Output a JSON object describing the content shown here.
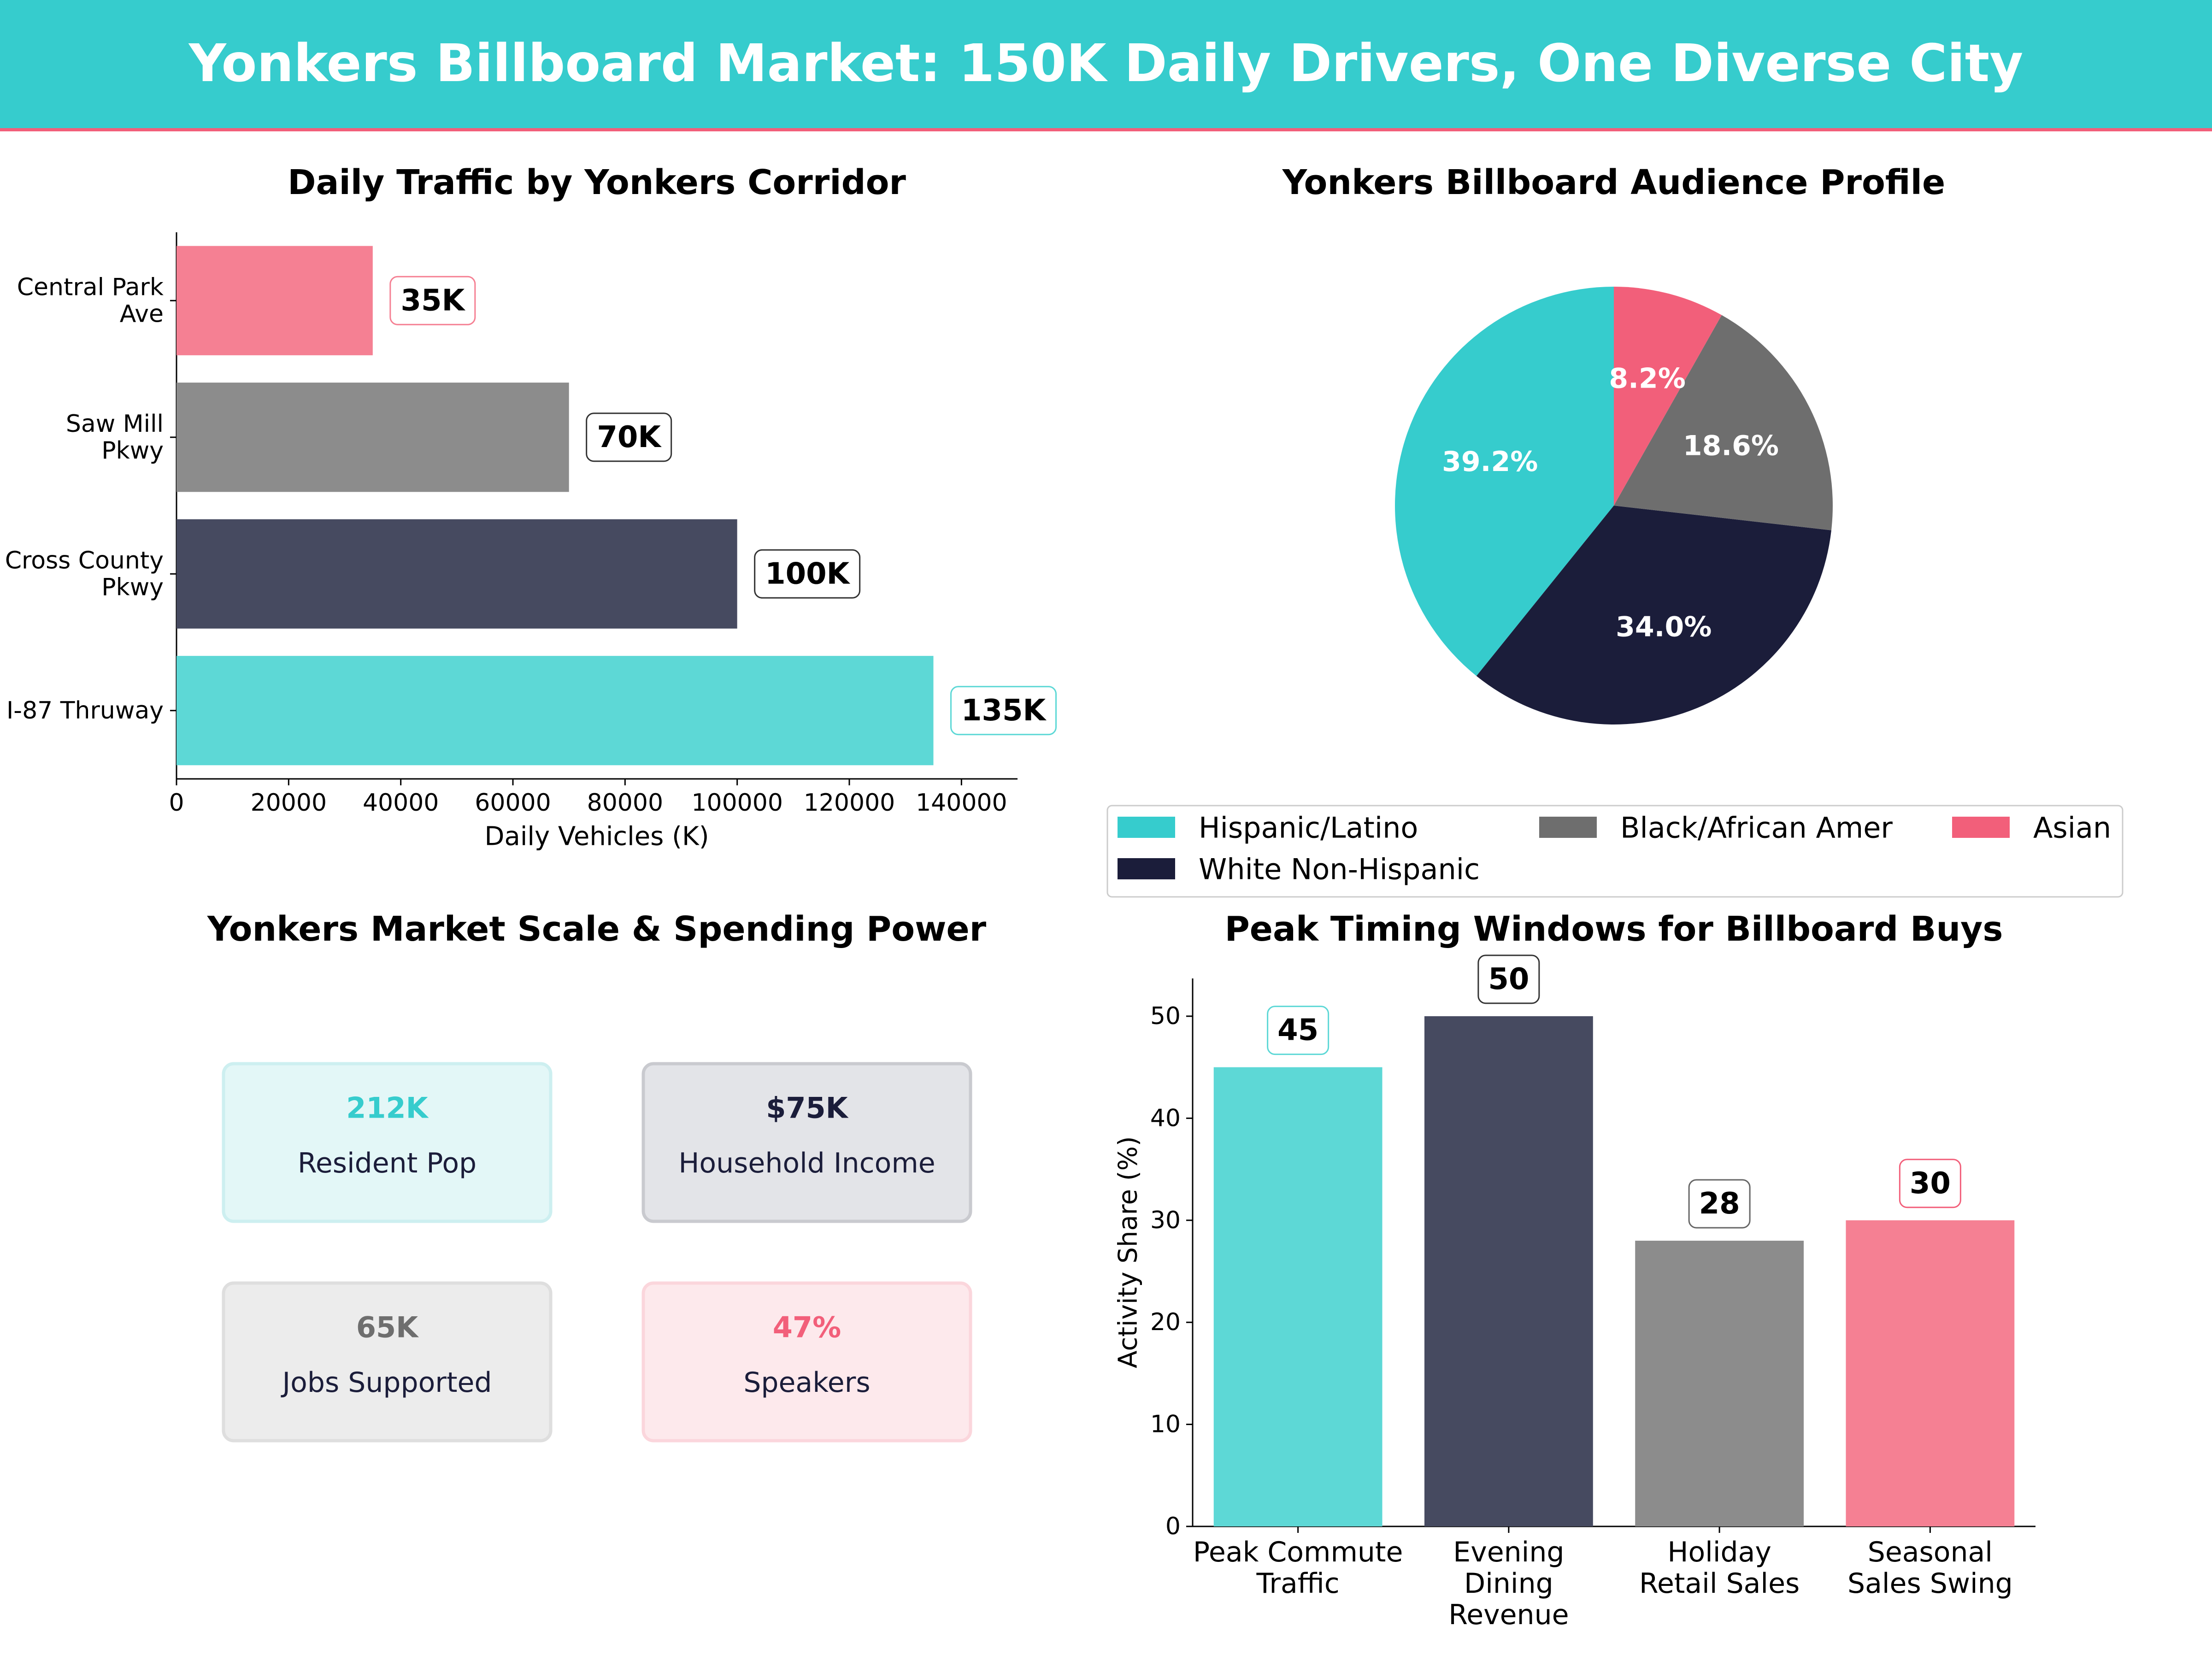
{
  "header": {
    "title": "Yonkers Billboard Market: 150K Daily Drivers, One Diverse City",
    "bg_color": "#36cccd",
    "underline_color": "#f25f7a"
  },
  "colors": {
    "teal": "#36cccd",
    "teal_light": "#5dd8d6",
    "navy": "#1b1d3a",
    "slate": "#464a60",
    "gray": "#8c8c8c",
    "dark_gray": "#6e6e6e",
    "pink": "#f58093",
    "red_pink": "#f25f7a"
  },
  "chart_data": [
    {
      "type": "bar",
      "orientation": "horizontal",
      "title": "Daily Traffic by Yonkers Corridor",
      "xlabel": "Daily Vehicles (K)",
      "ylabel": "",
      "categories": [
        "Central Park\nAve",
        "Saw Mill\nPkwy",
        "Cross County\nPkwy",
        "I-87 Thruway"
      ],
      "values": [
        35000,
        70000,
        100000,
        135000
      ],
      "value_labels": [
        "35K",
        "70K",
        "100K",
        "135K"
      ],
      "bar_colors": [
        "#f58093",
        "#8c8c8c",
        "#464a60",
        "#5dd8d6"
      ],
      "xlim": [
        0,
        150000
      ],
      "xticks": [
        0,
        20000,
        40000,
        60000,
        80000,
        100000,
        120000,
        140000
      ],
      "xtick_labels": [
        "0",
        "20000",
        "40000",
        "60000",
        "80000",
        "100000",
        "120000",
        "140000"
      ],
      "grid": false
    },
    {
      "type": "pie",
      "title": "Yonkers Billboard Audience Profile",
      "labels": [
        "Hispanic/Latino",
        "White Non-Hispanic",
        "Black/African Amer",
        "Asian"
      ],
      "values": [
        39.2,
        34.0,
        18.6,
        8.2
      ],
      "value_labels": [
        "39.2%",
        "34.0%",
        "18.6%",
        "8.2%"
      ],
      "colors": [
        "#36cccd",
        "#1b1d3a",
        "#6e6e6e",
        "#f25f7a"
      ],
      "legend_position": "bottom",
      "legend_entries": [
        {
          "label": "Hispanic/Latino",
          "color": "#36cccd"
        },
        {
          "label": "Black/African Amer",
          "color": "#6e6e6e"
        },
        {
          "label": "Asian",
          "color": "#f25f7a"
        },
        {
          "label": "White Non-Hispanic",
          "color": "#1b1d3a"
        }
      ]
    },
    {
      "type": "table",
      "title": "Yonkers Market Scale & Spending Power",
      "cards": [
        {
          "value": "212K",
          "label": "Resident Pop",
          "accent": "#36cccd",
          "bg": "#e3f7f7",
          "border": "#cdeff0"
        },
        {
          "value": "$75K",
          "label": "Household Income",
          "accent": "#1b1d3a",
          "bg": "#e3e4e8",
          "border": "#c9cacf"
        },
        {
          "value": "65K",
          "label": "Jobs Supported",
          "accent": "#6e6e6e",
          "bg": "#ececec",
          "border": "#dedede"
        },
        {
          "value": "47%",
          "label": "Speakers",
          "accent": "#f25f7a",
          "bg": "#fde9ec",
          "border": "#fbd6dc"
        }
      ]
    },
    {
      "type": "bar",
      "orientation": "vertical",
      "title": "Peak Timing Windows for Billboard Buys",
      "xlabel": "",
      "ylabel": "Activity Share (%)",
      "categories": [
        "Peak Commute\nTraffic",
        "Evening\nDining\nRevenue",
        "Holiday\nRetail Sales",
        "Seasonal\nSales Swing"
      ],
      "values": [
        45,
        50,
        28,
        30
      ],
      "value_labels": [
        "45",
        "50",
        "28",
        "30"
      ],
      "bar_colors": [
        "#5dd8d6",
        "#464a60",
        "#8c8c8c",
        "#f58093"
      ],
      "label_border_colors": [
        "#5dd8d6",
        "#333333",
        "#666666",
        "#f25f7a"
      ],
      "ylim": [
        0,
        53.7
      ],
      "yticks": [
        0,
        10,
        20,
        30,
        40,
        50
      ],
      "ytick_labels": [
        "0",
        "10",
        "20",
        "30",
        "40",
        "50"
      ],
      "grid": false
    }
  ]
}
